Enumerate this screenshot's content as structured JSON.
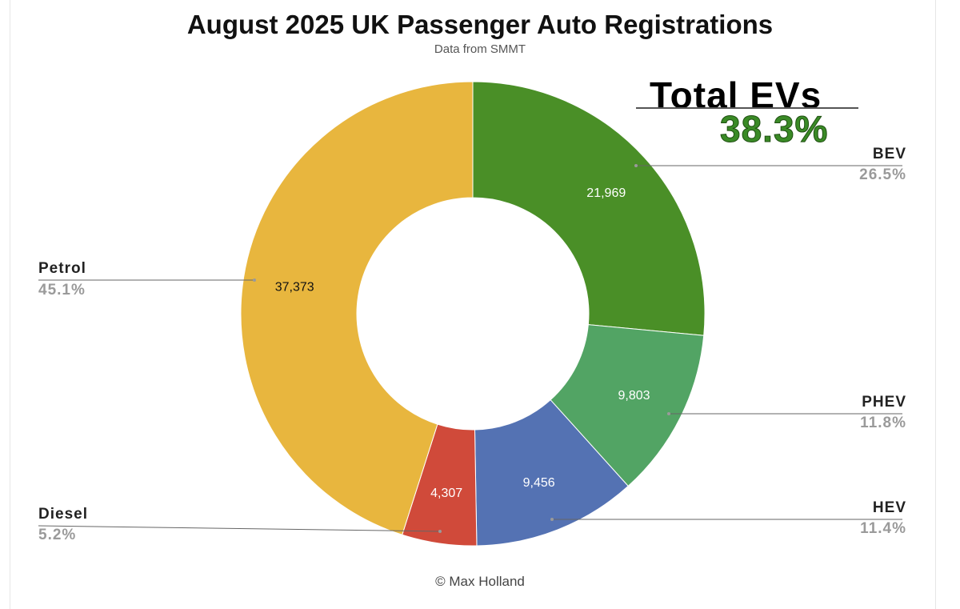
{
  "title": "August 2025 UK Passenger Auto Registrations",
  "subtitle": "Data from SMMT",
  "total_evs": {
    "label": "Total EVs",
    "value": "38.3%"
  },
  "credit": "© Max Holland",
  "chart_data": {
    "type": "pie",
    "title": "August 2025 UK Passenger Auto Registrations",
    "subtitle": "Data from SMMT",
    "donut": true,
    "slices": [
      {
        "name": "BEV",
        "value": 21969,
        "value_label": "21,969",
        "percent_label": "26.5%",
        "color": "#4a8f27"
      },
      {
        "name": "PHEV",
        "value": 9803,
        "value_label": "9,803",
        "percent_label": "11.8%",
        "color": "#52a464"
      },
      {
        "name": "HEV",
        "value": 9456,
        "value_label": "9,456",
        "percent_label": "11.4%",
        "color": "#5472b3"
      },
      {
        "name": "Diesel",
        "value": 4307,
        "value_label": "4,307",
        "percent_label": "5.2%",
        "color": "#d04a3a"
      },
      {
        "name": "Petrol",
        "value": 37373,
        "value_label": "37,373",
        "percent_label": "45.1%",
        "color": "#e8b63e"
      }
    ],
    "legend": "callouts"
  }
}
